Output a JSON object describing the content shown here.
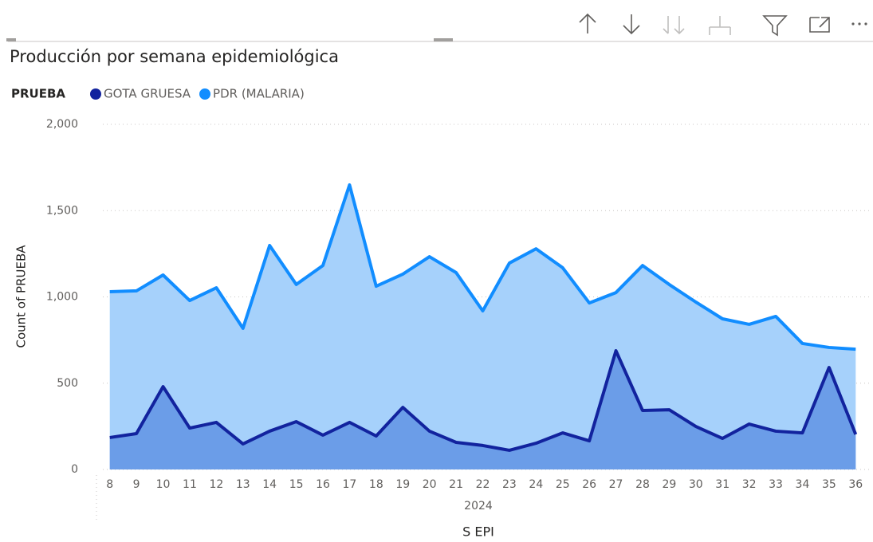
{
  "chart_data": {
    "type": "area",
    "title": "Producción por semana epidemiológica",
    "legend_title": "PRUEBA",
    "y_label": "Count of PRUEBA",
    "x_label": "S EPI",
    "x_group_label": "2024",
    "categories": [
      "8",
      "9",
      "10",
      "11",
      "12",
      "13",
      "14",
      "15",
      "16",
      "17",
      "18",
      "19",
      "20",
      "21",
      "22",
      "23",
      "24",
      "25",
      "26",
      "27",
      "28",
      "29",
      "30",
      "31",
      "32",
      "33",
      "34",
      "35",
      "36"
    ],
    "series": [
      {
        "name": "GOTA GRUESA",
        "color": "#12239e",
        "fill": "#6b9de8",
        "values": [
          185,
          208,
          480,
          240,
          273,
          148,
          222,
          277,
          199,
          273,
          194,
          360,
          222,
          157,
          139,
          111,
          152,
          212,
          166,
          688,
          342,
          346,
          249,
          180,
          263,
          222,
          212,
          591,
          203
        ]
      },
      {
        "name": "PDR (MALARIA)",
        "color": "#118dff",
        "fill": "#a6d1fb",
        "values": [
          1030,
          1035,
          1127,
          979,
          1053,
          818,
          1298,
          1072,
          1182,
          1649,
          1062,
          1132,
          1233,
          1141,
          919,
          1196,
          1279,
          1169,
          965,
          1025,
          1182,
          1072,
          970,
          873,
          841,
          887,
          730,
          707,
          697
        ]
      }
    ],
    "ylim": [
      0,
      2000
    ],
    "yticks": [
      0,
      500,
      {
        "value": 1000,
        "label": "1,000"
      },
      {
        "value": 1500,
        "label": "1,500"
      },
      {
        "value": 2000,
        "label": "2,000"
      }
    ],
    "grid": true
  }
}
